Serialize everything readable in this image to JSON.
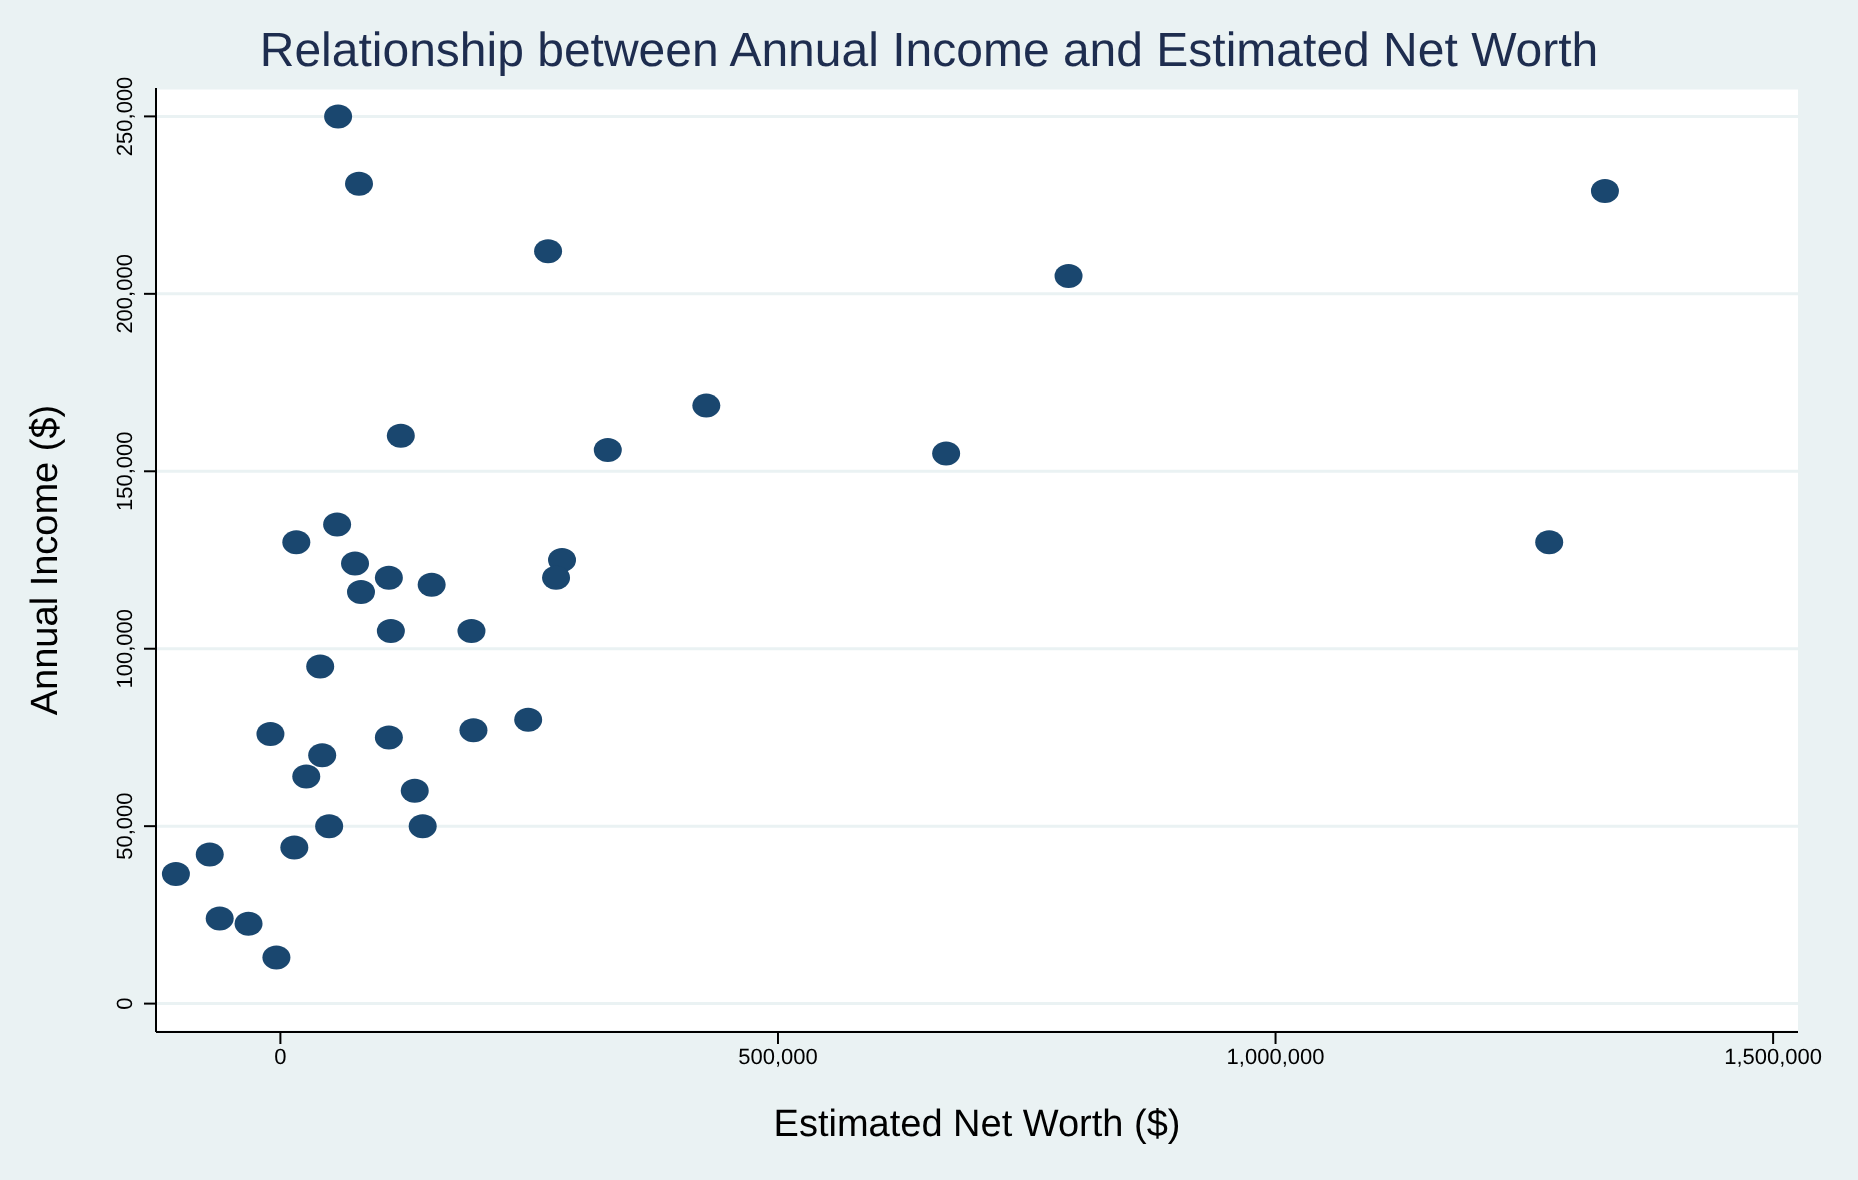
{
  "chart_data": {
    "type": "scatter",
    "title": "Relationship between Annual Income and Estimated Net Worth",
    "xlabel": "Estimated Net Worth ($)",
    "ylabel": "Annual Income ($)",
    "series": [
      {
        "color": "#1a476f",
        "x": [
          58000,
          79000,
          269000,
          1331000,
          792000,
          428000,
          121000,
          329000,
          669000,
          57000,
          16000,
          1275000,
          75000,
          283000,
          109000,
          277000,
          81000,
          152000,
          111000,
          192000,
          40000,
          -10000,
          194000,
          249000,
          42000,
          109000,
          26000,
          135000,
          49000,
          143000,
          14000,
          -71000,
          -105000,
          -61000,
          -32000,
          -4000
        ],
        "values": [
          250000,
          231000,
          212000,
          229000,
          205000,
          168500,
          160000,
          156000,
          155000,
          135000,
          130000,
          130000,
          124000,
          125000,
          120000,
          120000,
          116000,
          118000,
          105000,
          105000,
          95000,
          76000,
          77000,
          80000,
          70000,
          75000,
          64000,
          60000,
          50000,
          50000,
          44000,
          42000,
          36500,
          24000,
          22500,
          13000
        ]
      }
    ],
    "xlim": [
      -125000,
      1525000
    ],
    "xticks": [
      {
        "value": 0,
        "label": "0"
      },
      {
        "value": 500000,
        "label": "500,000"
      },
      {
        "value": 1000000,
        "label": "1,000,000"
      },
      {
        "value": 1500000,
        "label": "1,500,000"
      }
    ],
    "ylim": [
      -8000,
      258000
    ],
    "yticks": [
      {
        "value": 0,
        "label": "0"
      },
      {
        "value": 50000,
        "label": "50,000"
      },
      {
        "value": 100000,
        "label": "100,000"
      },
      {
        "value": 150000,
        "label": "150,000"
      },
      {
        "value": 200000,
        "label": "200,000"
      },
      {
        "value": 250000,
        "label": "250,000"
      }
    ],
    "grid": "y",
    "marker": "circle"
  }
}
